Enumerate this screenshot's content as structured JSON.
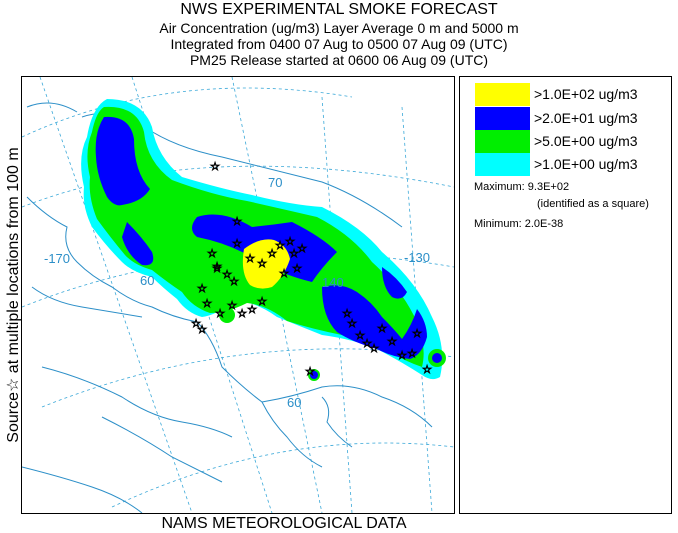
{
  "header": {
    "line1": "NWS EXPERIMENTAL SMOKE FORECAST",
    "line2": "Air Concentration (ug/m3) Layer Average    0 m and  5000 m",
    "line3": "Integrated from 0400 07 Aug to 0500 07 Aug 09 (UTC)",
    "line4": "PM25 Release started at 0600 06 Aug 09 (UTC)"
  },
  "side_label": "Source☆ at multiple locations    from   100 m",
  "legend": {
    "items": [
      {
        "label": ">1.0E+02 ug/m3",
        "color": "#ffff00"
      },
      {
        "label": ">2.0E+01 ug/m3",
        "color": "#0000ff"
      },
      {
        "label": ">5.0E+00 ug/m3",
        "color": "#00ee00"
      },
      {
        "label": ">1.0E+00 ug/m3",
        "color": "#00ffff"
      }
    ],
    "maximum": "Maximum: 9.3E+02",
    "maximum_note": "(identified as a square)",
    "minimum": "Minimum: 2.0E-38"
  },
  "map": {
    "graticule_labels": [
      "-170",
      "70",
      "-130",
      "140",
      "60",
      "60"
    ]
  },
  "footer": "NAMS METEOROLOGICAL DATA"
}
